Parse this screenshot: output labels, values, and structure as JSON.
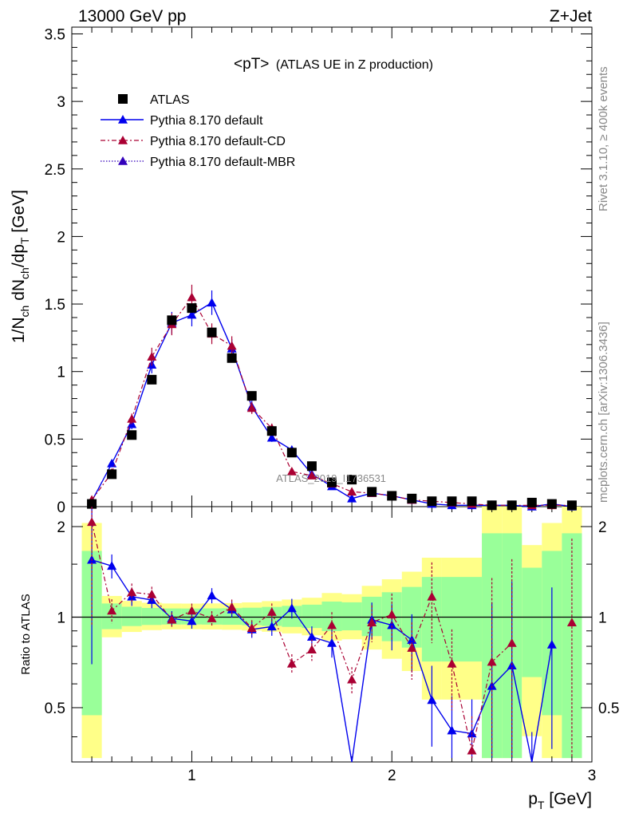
{
  "header": {
    "left": "13000 GeV pp",
    "right": "Z+Jet"
  },
  "side_labels": {
    "rivet": "Rivet 3.1.10, ≥ 400k events",
    "mcplots": "mcplots.cern.ch [arXiv:1306.3436]"
  },
  "watermark": "ATLAS_2019_I1736531",
  "chart_data": {
    "type": "scatter",
    "title": "<pT> (ATLAS UE in Z production)",
    "title_main": "<pT>",
    "title_sub": "(ATLAS UE in Z production)",
    "ylabel": "1/N_ch dN_ch/dp_T [GeV]",
    "xlabel": "p_T [GeV]",
    "ratio_ylabel": "Ratio to ATLAS",
    "xlim": [
      0.4,
      3.0
    ],
    "ylim": [
      0,
      3.55
    ],
    "ratio_ylim": [
      0.33,
      2.33
    ],
    "xticks": [
      1,
      2,
      3
    ],
    "yticks": [
      0,
      0.5,
      1,
      1.5,
      2,
      2.5,
      3,
      3.5
    ],
    "ratio_yticks": [
      0.5,
      1,
      2
    ],
    "legend_position": "top-left",
    "x": [
      0.5,
      0.6,
      0.7,
      0.8,
      0.9,
      1.0,
      1.1,
      1.2,
      1.3,
      1.4,
      1.5,
      1.6,
      1.7,
      1.8,
      1.9,
      2.0,
      2.1,
      2.2,
      2.3,
      2.4,
      2.5,
      2.6,
      2.7,
      2.8,
      2.9
    ],
    "series": [
      {
        "name": "ATLAS",
        "color": "#000000",
        "values": [
          0.02,
          0.24,
          0.53,
          0.94,
          1.38,
          1.47,
          1.29,
          1.1,
          0.82,
          0.56,
          0.4,
          0.3,
          0.18,
          0.2,
          0.11,
          0.08,
          0.06,
          0.04,
          0.04,
          0.04,
          0.01,
          0.01,
          0.03,
          0.02,
          0.01
        ]
      },
      {
        "name": "Pythia 8.170 default",
        "color": "#0000ee",
        "values": [
          0.04,
          0.32,
          0.61,
          1.05,
          1.36,
          1.42,
          1.51,
          1.17,
          0.74,
          0.51,
          0.42,
          0.24,
          0.15,
          0.06,
          0.1,
          0.08,
          0.05,
          0.02,
          0.01,
          0.01,
          0.01,
          0.01,
          0.0,
          0.02,
          0.0
        ],
        "ratio": [
          1.55,
          1.48,
          1.17,
          1.14,
          0.99,
          0.97,
          1.18,
          1.06,
          0.91,
          0.93,
          1.07,
          0.86,
          0.82,
          0.3,
          0.98,
          0.94,
          0.84,
          0.53,
          0.42,
          0.41,
          0.59,
          0.69,
          0.3,
          0.81,
          null
        ]
      },
      {
        "name": "Pythia 8.170 default-CD",
        "color": "#aa0033",
        "values": [
          0.05,
          0.25,
          0.65,
          1.11,
          1.35,
          1.55,
          1.28,
          1.19,
          0.73,
          0.58,
          0.26,
          0.23,
          0.17,
          0.11,
          0.1,
          0.08,
          0.05,
          0.04,
          0.03,
          0.02,
          0.01,
          0.01,
          0.01,
          0.01,
          0.01
        ],
        "ratio": [
          2.07,
          1.05,
          1.21,
          1.19,
          0.98,
          1.05,
          0.99,
          1.08,
          0.92,
          1.04,
          0.7,
          0.78,
          0.94,
          0.62,
          0.96,
          1.02,
          0.79,
          1.17,
          0.7,
          0.36,
          0.71,
          0.82,
          null,
          null,
          0.96
        ]
      },
      {
        "name": "Pythia 8.170 default-MBR",
        "color": "#3300bb",
        "values": [],
        "ratio": []
      }
    ]
  }
}
